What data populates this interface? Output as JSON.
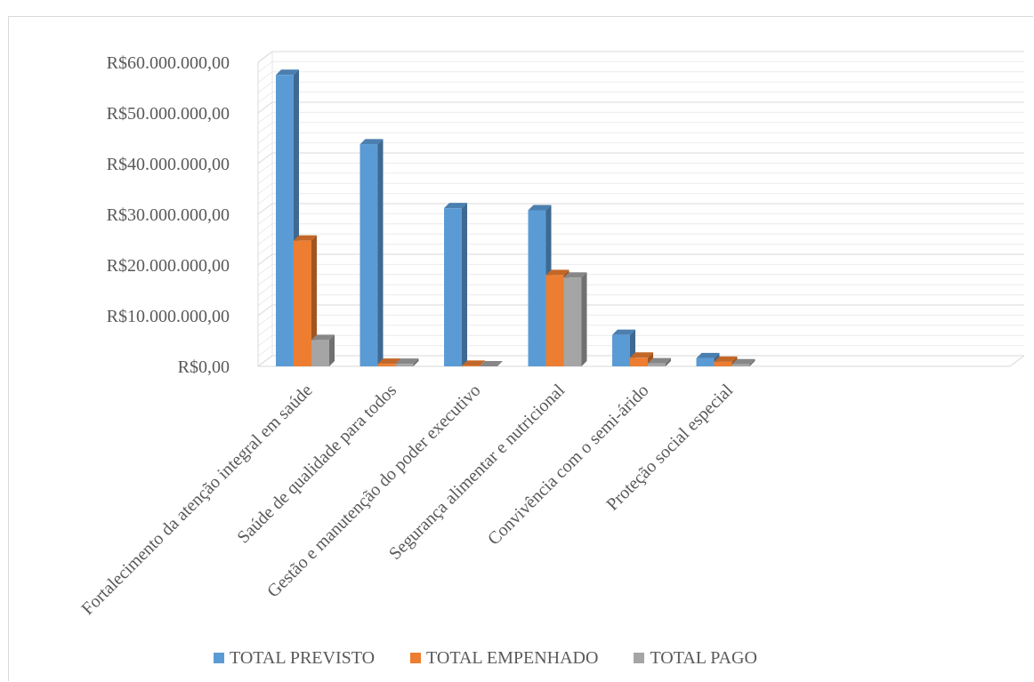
{
  "chart_data": {
    "type": "bar",
    "categories": [
      "Fortalecimento da atenção integral em saúde",
      "Saúde de qualidade para todos",
      "Gestão e manutenção do poder executivo",
      "Segurança alimentar e nutricional",
      "Convivência com o semi-árido",
      "Proteção social especial"
    ],
    "series": [
      {
        "name": "TOTAL PREVISTO",
        "color": "#5b9bd5",
        "values": [
          57500000,
          43800000,
          31200000,
          30800000,
          6200000,
          1600000
        ]
      },
      {
        "name": "TOTAL EMPENHADO",
        "color": "#ed7d31",
        "values": [
          24800000,
          500000,
          100000,
          18000000,
          1700000,
          900000
        ]
      },
      {
        "name": "TOTAL PAGO",
        "color": "#a5a5a5",
        "values": [
          5200000,
          500000,
          0,
          17500000,
          600000,
          400000
        ]
      }
    ],
    "yticks": [
      "R$0,00",
      "R$10.000.000,00",
      "R$20.000.000,00",
      "R$30.000.000,00",
      "R$40.000.000,00",
      "R$50.000.000,00",
      "R$60.000.000,00"
    ],
    "ylim": [
      0,
      60000000
    ],
    "grid": true,
    "legend": "bottom",
    "title": "",
    "xlabel": "",
    "ylabel": ""
  }
}
